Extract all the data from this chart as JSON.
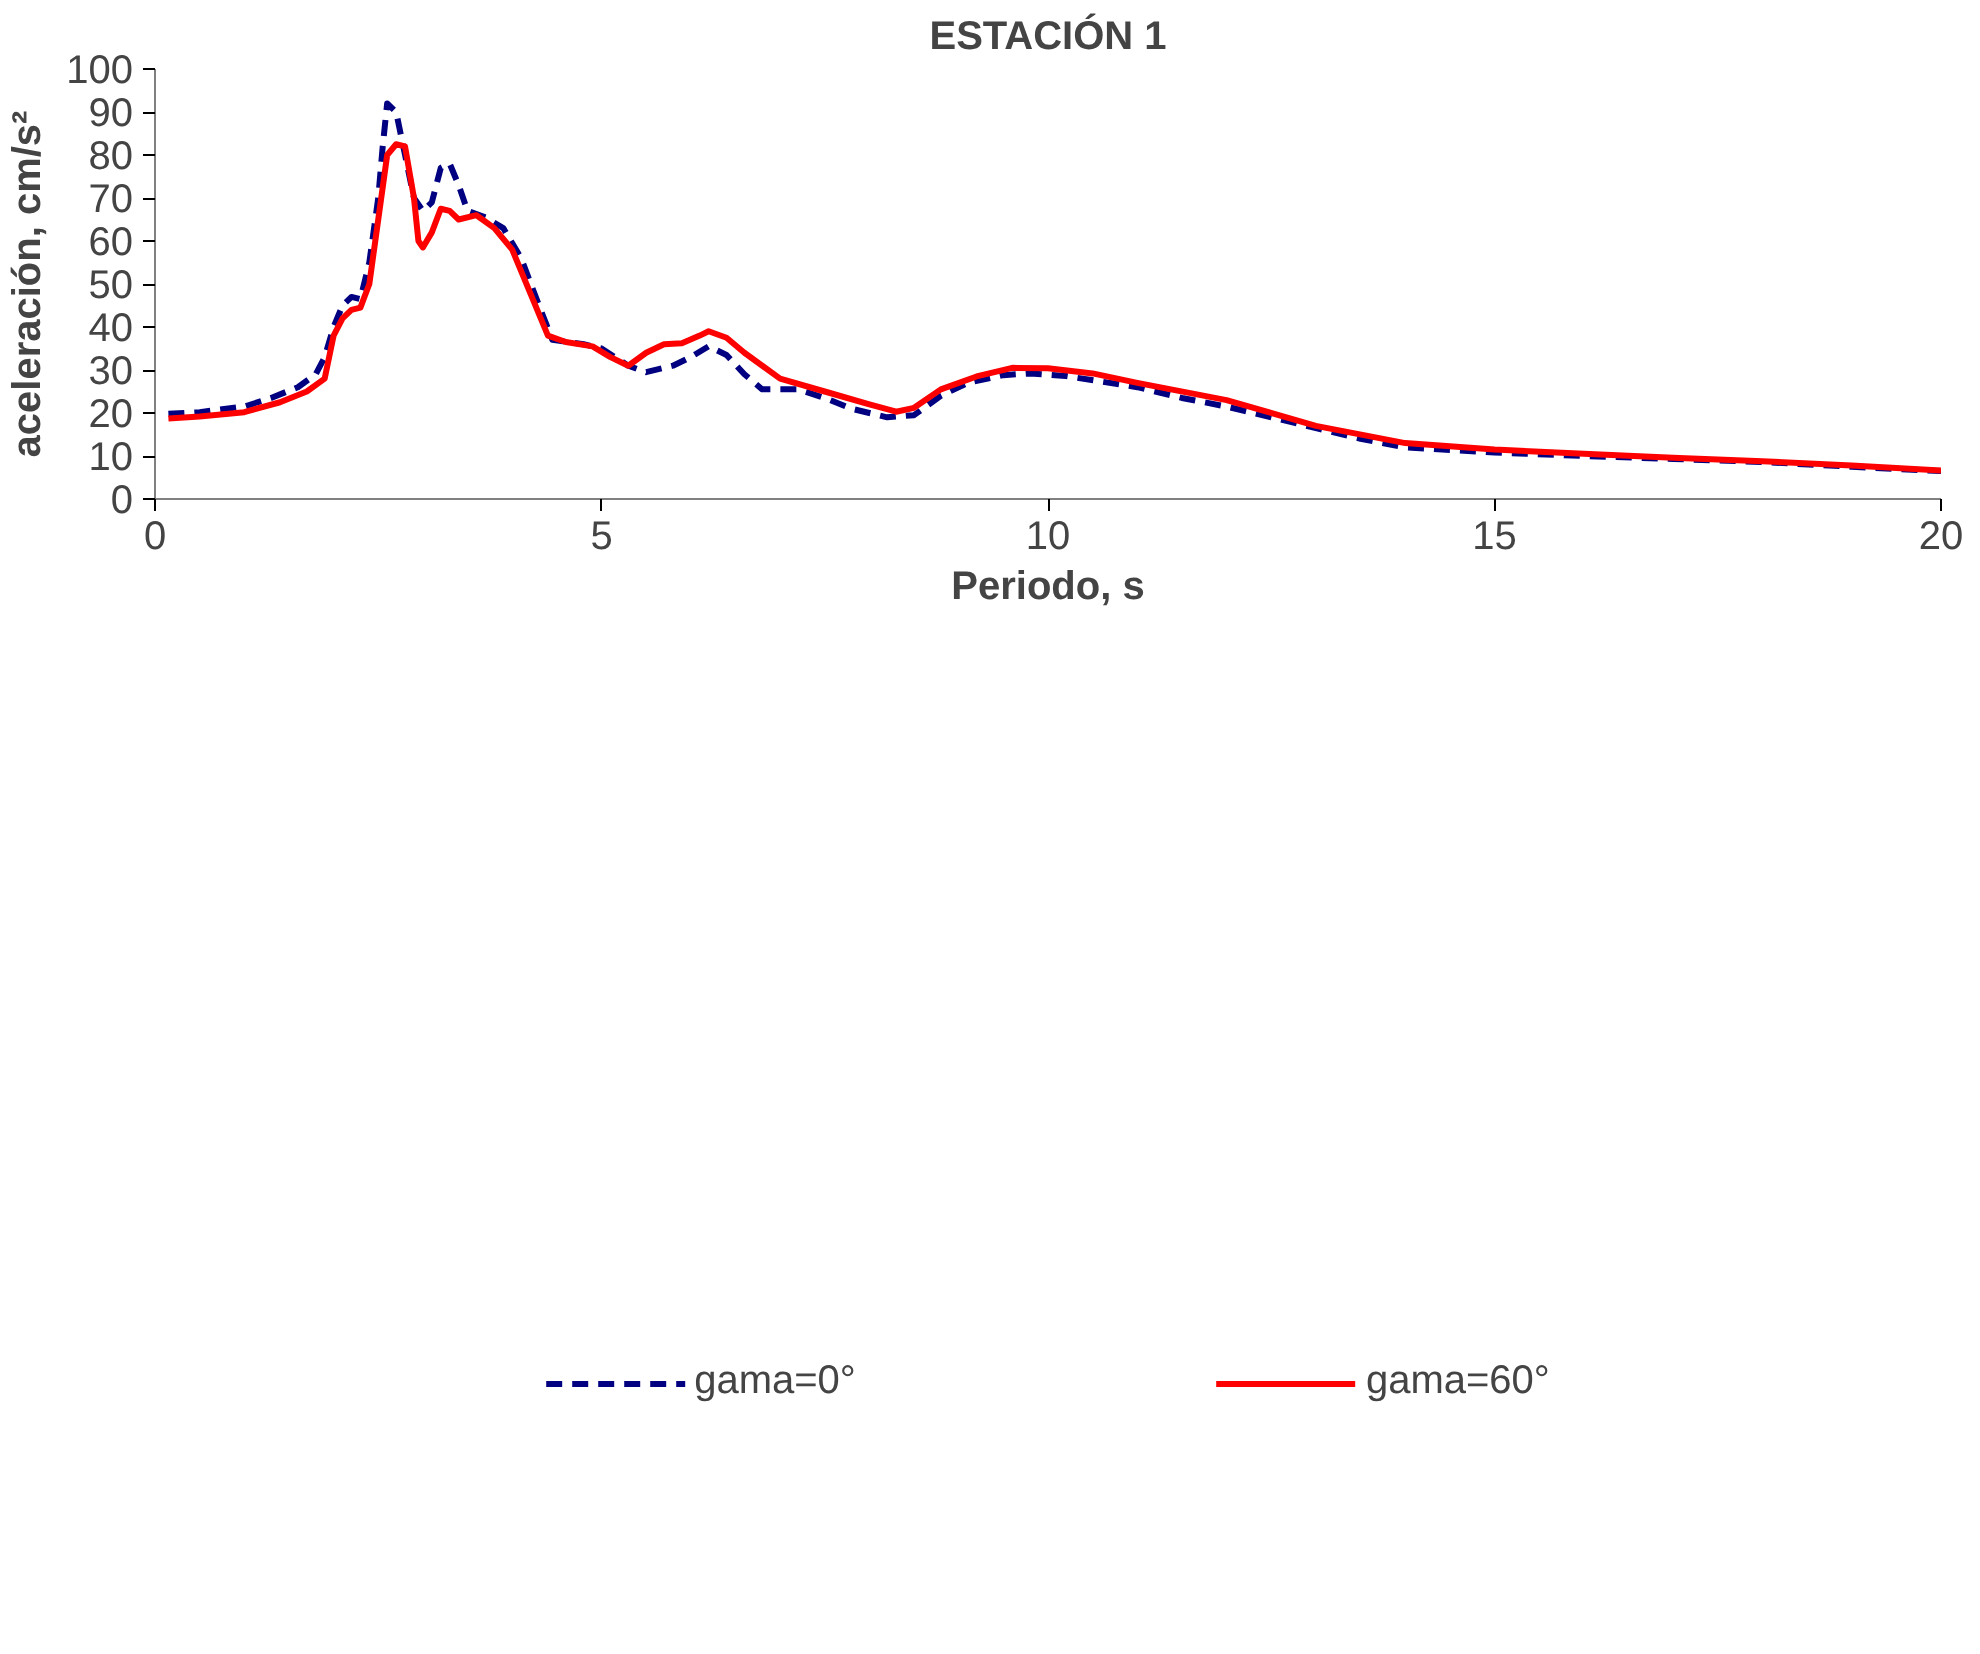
{
  "chart_data": {
    "type": "line",
    "title": "ESTACIÓN 1",
    "xlabel": "Periodo, s",
    "ylabel": "aceleración, cm/s²",
    "xlim": [
      0,
      20
    ],
    "xticks": [
      0,
      5,
      10,
      15,
      20
    ],
    "ylim": [
      0,
      100
    ],
    "yticks": [
      0,
      10,
      20,
      30,
      40,
      50,
      60,
      70,
      80,
      90,
      100
    ],
    "grid": false,
    "legend": "bottom",
    "marker": "none",
    "series": [
      {
        "name": "gama=0°",
        "color": "#000080",
        "line_style": "dashed",
        "x": [
          0.15,
          0.5,
          1.0,
          1.3,
          1.6,
          1.8,
          1.9,
          2.0,
          2.1,
          2.2,
          2.3,
          2.4,
          2.5,
          2.55,
          2.6,
          2.7,
          2.8,
          2.9,
          3.0,
          3.1,
          3.2,
          3.3,
          3.4,
          3.5,
          3.7,
          3.9,
          4.1,
          4.3,
          4.45,
          4.8,
          5.0,
          5.3,
          5.5,
          5.8,
          6.0,
          6.2,
          6.4,
          6.6,
          6.8,
          7.2,
          7.5,
          7.8,
          8.2,
          8.5,
          8.8,
          9.1,
          9.5,
          9.8,
          10.2,
          11,
          11.5,
          12,
          12.5,
          13,
          13.5,
          14,
          15,
          16,
          17,
          18,
          19,
          20
        ],
        "values": [
          19.8,
          20.2,
          21.5,
          23.5,
          26,
          29,
          33,
          40,
          45,
          47,
          46.5,
          55,
          70,
          82,
          92,
          90,
          80,
          70,
          67,
          69,
          77,
          78,
          73,
          67,
          65.5,
          63,
          56,
          45,
          37,
          36,
          35,
          31,
          29.5,
          31,
          33,
          35.5,
          33.5,
          29,
          25.5,
          25.5,
          23.5,
          21,
          19,
          19.5,
          24,
          27,
          28.8,
          29.2,
          28.6,
          26,
          23.5,
          21.5,
          19,
          16.5,
          14,
          12,
          10.8,
          10,
          9.3,
          8.6,
          7.5,
          6.5
        ]
      },
      {
        "name": "gama=60°",
        "color": "#ff0000",
        "line_style": "solid",
        "x": [
          0.15,
          0.5,
          1.0,
          1.4,
          1.7,
          1.9,
          2.0,
          2.1,
          2.2,
          2.3,
          2.4,
          2.5,
          2.6,
          2.7,
          2.8,
          2.9,
          2.95,
          3.0,
          3.1,
          3.2,
          3.3,
          3.4,
          3.6,
          3.8,
          4.0,
          4.2,
          4.4,
          4.6,
          4.9,
          5.1,
          5.3,
          5.5,
          5.7,
          5.9,
          6.1,
          6.2,
          6.4,
          6.6,
          7.0,
          7.5,
          8.0,
          8.3,
          8.5,
          8.8,
          9.2,
          9.6,
          10.0,
          10.5,
          11,
          12,
          13,
          14,
          15,
          16,
          17,
          18,
          19,
          20
        ],
        "values": [
          18.7,
          19.2,
          20.2,
          22.5,
          25,
          28,
          38,
          42,
          44,
          44.5,
          50,
          65,
          80,
          82.5,
          82,
          70,
          60,
          58.5,
          62,
          67.5,
          67,
          65,
          66,
          63,
          58,
          48,
          38,
          36.5,
          35.5,
          33,
          31,
          34,
          36,
          36.2,
          38,
          39,
          37.5,
          34,
          28,
          25,
          22,
          20.3,
          21.2,
          25.5,
          28.5,
          30.5,
          30.4,
          29.2,
          27,
          23,
          17,
          13,
          11.5,
          10.5,
          9.6,
          8.8,
          7.8,
          6.6
        ]
      }
    ]
  }
}
